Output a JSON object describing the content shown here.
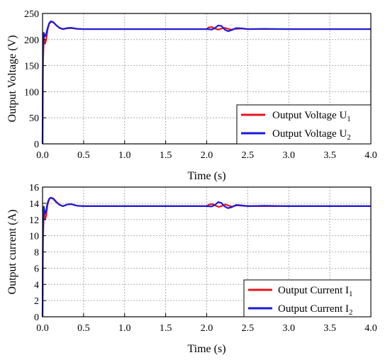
{
  "chart_data": [
    {
      "type": "line",
      "xlabel": "Time (s)",
      "ylabel": "Output Voltage (V)",
      "xlim": [
        0,
        4.0
      ],
      "ylim": [
        0,
        250
      ],
      "x_ticks": [
        "0.0",
        "0.5",
        "1.0",
        "1.5",
        "2.0",
        "2.5",
        "3.0",
        "3.5",
        "4.0"
      ],
      "y_ticks": [
        "0",
        "50",
        "100",
        "150",
        "200",
        "250"
      ],
      "grid": true,
      "legend_position": "bottom-right",
      "series": [
        {
          "name": "Output Voltage U",
          "name_sub": "1",
          "color": "#e8141c",
          "points": [
            [
              0.0,
              0
            ],
            [
              0.005,
              150
            ],
            [
              0.015,
              205
            ],
            [
              0.03,
              192
            ],
            [
              0.045,
              200
            ],
            [
              0.06,
              218
            ],
            [
              0.08,
              230
            ],
            [
              0.1,
              234
            ],
            [
              0.13,
              233
            ],
            [
              0.17,
              227
            ],
            [
              0.21,
              222
            ],
            [
              0.25,
              220
            ],
            [
              0.3,
              221.5
            ],
            [
              0.35,
              222
            ],
            [
              0.42,
              220.5
            ],
            [
              0.5,
              220
            ],
            [
              1.0,
              220
            ],
            [
              1.5,
              220
            ],
            [
              2.0,
              220
            ],
            [
              2.02,
              223
            ],
            [
              2.06,
              224
            ],
            [
              2.1,
              221
            ],
            [
              2.14,
              219
            ],
            [
              2.18,
              221
            ],
            [
              2.22,
              222.5
            ],
            [
              2.26,
              220.5
            ],
            [
              2.3,
              219
            ],
            [
              2.36,
              220.5
            ],
            [
              2.42,
              221
            ],
            [
              2.5,
              220
            ],
            [
              3.0,
              220
            ],
            [
              4.0,
              220
            ]
          ]
        },
        {
          "name": "Output Voltage U",
          "name_sub": "2",
          "color": "#1a1adc",
          "points": [
            [
              0.0,
              0
            ],
            [
              0.005,
              170
            ],
            [
              0.015,
              213
            ],
            [
              0.03,
              206
            ],
            [
              0.045,
              211
            ],
            [
              0.06,
              221
            ],
            [
              0.08,
              231
            ],
            [
              0.1,
              235
            ],
            [
              0.13,
              233.5
            ],
            [
              0.17,
              227
            ],
            [
              0.21,
              222
            ],
            [
              0.25,
              220
            ],
            [
              0.3,
              222
            ],
            [
              0.35,
              222.5
            ],
            [
              0.42,
              220.5
            ],
            [
              0.5,
              220
            ],
            [
              1.0,
              220
            ],
            [
              1.5,
              220
            ],
            [
              2.0,
              220
            ],
            [
              2.06,
              219
            ],
            [
              2.1,
              222
            ],
            [
              2.14,
              227
            ],
            [
              2.18,
              226
            ],
            [
              2.22,
              219
            ],
            [
              2.26,
              216
            ],
            [
              2.3,
              218
            ],
            [
              2.36,
              222
            ],
            [
              2.42,
              221.5
            ],
            [
              2.5,
              220
            ],
            [
              2.7,
              220.5
            ],
            [
              3.0,
              220
            ],
            [
              4.0,
              220
            ]
          ]
        }
      ]
    },
    {
      "type": "line",
      "xlabel": "Time (s)",
      "ylabel": "Output current (A)",
      "xlim": [
        0,
        4.0
      ],
      "ylim": [
        0,
        16
      ],
      "x_ticks": [
        "0.0",
        "0.5",
        "1.0",
        "1.5",
        "2.0",
        "2.5",
        "3.0",
        "3.5",
        "4.0"
      ],
      "y_ticks": [
        "0",
        "2",
        "4",
        "6",
        "8",
        "10",
        "12",
        "14",
        "16"
      ],
      "grid": true,
      "legend_position": "bottom-right",
      "series": [
        {
          "name": "Output Current I",
          "name_sub": "1",
          "color": "#e8141c",
          "points": [
            [
              0.0,
              0
            ],
            [
              0.005,
              9
            ],
            [
              0.015,
              13.2
            ],
            [
              0.03,
              12.0
            ],
            [
              0.045,
              12.5
            ],
            [
              0.06,
              13.8
            ],
            [
              0.08,
              14.5
            ],
            [
              0.1,
              14.65
            ],
            [
              0.13,
              14.55
            ],
            [
              0.17,
              14.1
            ],
            [
              0.21,
              13.8
            ],
            [
              0.25,
              13.65
            ],
            [
              0.3,
              13.85
            ],
            [
              0.35,
              13.9
            ],
            [
              0.42,
              13.7
            ],
            [
              0.5,
              13.65
            ],
            [
              1.0,
              13.65
            ],
            [
              1.5,
              13.65
            ],
            [
              2.0,
              13.65
            ],
            [
              2.03,
              13.85
            ],
            [
              2.07,
              13.9
            ],
            [
              2.11,
              13.7
            ],
            [
              2.15,
              13.55
            ],
            [
              2.19,
              13.7
            ],
            [
              2.23,
              13.85
            ],
            [
              2.27,
              13.7
            ],
            [
              2.31,
              13.6
            ],
            [
              2.37,
              13.75
            ],
            [
              2.43,
              13.7
            ],
            [
              2.5,
              13.65
            ],
            [
              3.0,
              13.65
            ],
            [
              4.0,
              13.65
            ]
          ]
        },
        {
          "name": "Output Current I",
          "name_sub": "2",
          "color": "#1a1adc",
          "points": [
            [
              0.0,
              0
            ],
            [
              0.005,
              10
            ],
            [
              0.015,
              13.6
            ],
            [
              0.03,
              12.7
            ],
            [
              0.045,
              13.1
            ],
            [
              0.06,
              14.0
            ],
            [
              0.08,
              14.55
            ],
            [
              0.1,
              14.7
            ],
            [
              0.13,
              14.6
            ],
            [
              0.17,
              14.15
            ],
            [
              0.21,
              13.8
            ],
            [
              0.25,
              13.65
            ],
            [
              0.3,
              13.85
            ],
            [
              0.35,
              13.9
            ],
            [
              0.42,
              13.7
            ],
            [
              0.5,
              13.65
            ],
            [
              1.0,
              13.65
            ],
            [
              1.5,
              13.65
            ],
            [
              2.0,
              13.65
            ],
            [
              2.06,
              13.6
            ],
            [
              2.1,
              13.8
            ],
            [
              2.14,
              14.15
            ],
            [
              2.18,
              14.05
            ],
            [
              2.22,
              13.6
            ],
            [
              2.26,
              13.4
            ],
            [
              2.3,
              13.5
            ],
            [
              2.36,
              13.8
            ],
            [
              2.42,
              13.75
            ],
            [
              2.5,
              13.65
            ],
            [
              2.7,
              13.7
            ],
            [
              3.0,
              13.65
            ],
            [
              4.0,
              13.65
            ]
          ]
        }
      ]
    }
  ]
}
